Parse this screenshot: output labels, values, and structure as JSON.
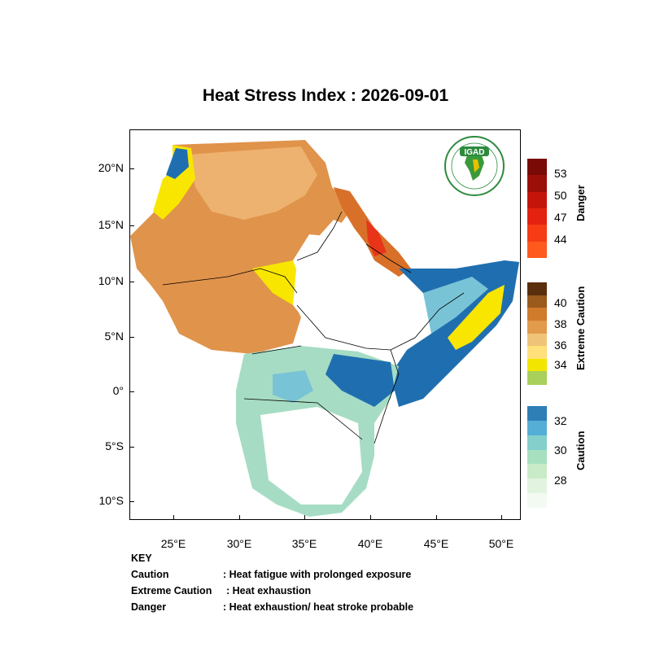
{
  "title": "Heat Stress Index : 2026-09-01",
  "axes": {
    "lat_labels": [
      "20°N",
      "15°N",
      "10°N",
      "5°N",
      "0°",
      "5°S",
      "10°S"
    ],
    "lon_labels": [
      "25°E",
      "30°E",
      "35°E",
      "40°E",
      "45°E",
      "50°E"
    ]
  },
  "logo": {
    "text": "IGAD",
    "name": "IGAD"
  },
  "colorbars": {
    "danger": {
      "title": "Danger",
      "labels": [
        "53",
        "50",
        "47",
        "44"
      ],
      "colors": [
        "#7a0a06",
        "#9c0f08",
        "#c5150b",
        "#e3230f",
        "#f53c14",
        "#ff5a1e"
      ]
    },
    "extreme": {
      "title": "Extreme Caution",
      "labels": [
        "40",
        "38",
        "36",
        "34"
      ],
      "colors": [
        "#5a2f0d",
        "#9a5a1c",
        "#d07a2c",
        "#e29a4c",
        "#f0c478",
        "#ffe07a",
        "#f2e600",
        "#a9d05a"
      ]
    },
    "caution": {
      "title": "Caution",
      "labels": [
        "32",
        "30",
        "28"
      ],
      "colors": [
        "#2e7fb5",
        "#55aed6",
        "#84cfcc",
        "#a6e0bf",
        "#c9ebc8",
        "#e2f4df",
        "#f3faf2"
      ]
    }
  },
  "key": {
    "heading": "KEY",
    "rows": [
      {
        "term": "Caution",
        "desc": ": Heat fatigue with prolonged exposure"
      },
      {
        "term": "Extreme Caution",
        "desc": ": Heat exhaustion"
      },
      {
        "term": "Danger",
        "desc": ": Heat exhaustion/ heat stroke probable"
      }
    ]
  },
  "colors": {
    "orange": "#e0934a",
    "tan": "#edb26f",
    "yellow": "#f8e600",
    "blue": "#1f6fb0",
    "lightblue": "#79c3d6",
    "green": "#a6dcc4",
    "white": "#ffffff",
    "red": "#e8351a"
  }
}
